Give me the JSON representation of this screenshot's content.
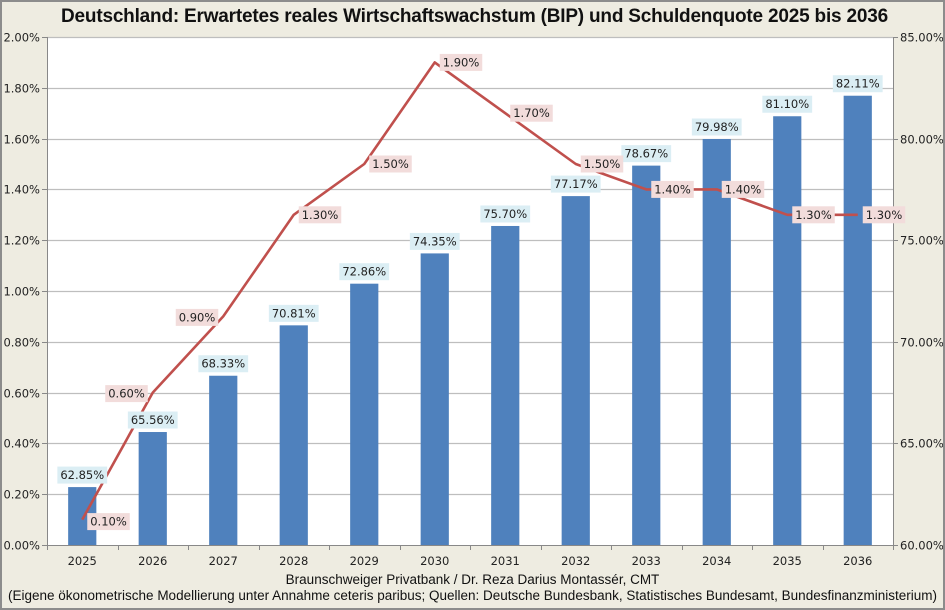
{
  "chart_data": {
    "type": "bar+line",
    "title": "Deutschland: Erwartetes reales Wirtschaftswachstum (BIP) und Schuldenquote 2025 bis 2036",
    "categories": [
      "2025",
      "2026",
      "2027",
      "2028",
      "2029",
      "2030",
      "2031",
      "2032",
      "2033",
      "2034",
      "2035",
      "2036"
    ],
    "series": [
      {
        "name": "Schuldenquote",
        "type": "bar",
        "axis": "right",
        "color": "#4F81BD",
        "label_bg": "#DBEEF4",
        "values": [
          62.85,
          65.56,
          68.33,
          70.81,
          72.86,
          74.35,
          75.7,
          77.17,
          78.67,
          79.98,
          81.1,
          82.11
        ],
        "labels": [
          "62.85%",
          "65.56%",
          "68.33%",
          "70.81%",
          "72.86%",
          "74.35%",
          "75.70%",
          "77.17%",
          "78.67%",
          "79.98%",
          "81.10%",
          "82.11%"
        ]
      },
      {
        "name": "Reales Wirtschaftswachstum (BIP)",
        "type": "line",
        "axis": "left",
        "color": "#C0504D",
        "label_bg": "#F2DCDB",
        "values": [
          0.1,
          0.6,
          0.9,
          1.3,
          1.5,
          1.9,
          1.7,
          1.5,
          1.4,
          1.4,
          1.3,
          1.3
        ],
        "labels": [
          "0.10%",
          "0.60%",
          "0.90%",
          "1.30%",
          "1.50%",
          "1.90%",
          "1.70%",
          "1.50%",
          "1.40%",
          "1.40%",
          "1.30%",
          "1.30%"
        ],
        "label_side": [
          "right",
          "left",
          "left",
          "right",
          "right",
          "right",
          "right",
          "right",
          "right",
          "right",
          "right",
          "right"
        ]
      }
    ],
    "left_axis": {
      "ylim": [
        0,
        2.0
      ],
      "ticks": [
        0,
        0.2,
        0.4,
        0.6,
        0.8,
        1.0,
        1.2,
        1.4,
        1.6,
        1.8,
        2.0
      ],
      "tick_labels": [
        "0.00%",
        "0.20%",
        "0.40%",
        "0.60%",
        "0.80%",
        "1.00%",
        "1.20%",
        "1.40%",
        "1.60%",
        "1.80%",
        "2.00%"
      ]
    },
    "right_axis": {
      "ylim": [
        60,
        85
      ],
      "ticks": [
        60,
        65,
        70,
        75,
        80,
        85
      ],
      "tick_labels": [
        "60.00%",
        "65.00%",
        "70.00%",
        "75.00%",
        "80.00%",
        "85.00%"
      ]
    },
    "grid": true,
    "legend": "none",
    "xlabel": "",
    "ylabel": "",
    "footer": [
      "Braunschweiger Privatbank / Dr. Reza Darius Montassér, CMT",
      "(Eigene ökonometrische Modellierung unter Annahme ceteris paribus; Quellen:  Deutsche Bundesbank, Statistisches Bundesamt,  Bundesfinanzministerium)"
    ]
  }
}
